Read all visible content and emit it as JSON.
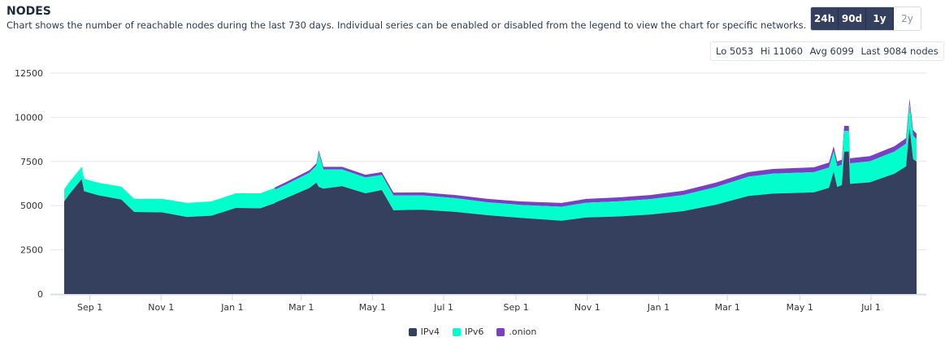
{
  "header": {
    "title": "NODES",
    "description": "Chart shows the number of reachable nodes during the last 730 days. Individual series can be enabled or disabled from the legend to view the chart for specific networks."
  },
  "range_buttons": [
    {
      "label": "24h",
      "active": true
    },
    {
      "label": "90d",
      "active": true
    },
    {
      "label": "1y",
      "active": true
    },
    {
      "label": "2y",
      "active": false
    }
  ],
  "stats": {
    "lo": "Lo 5053",
    "hi": "Hi 11060",
    "avg": "Avg 6099",
    "last": "Last 9084 nodes"
  },
  "chart_data": {
    "type": "area",
    "stacked": true,
    "title": "NODES",
    "xlabel": "",
    "ylabel": "",
    "ylim": [
      0,
      12500
    ],
    "yticks": [
      0,
      2500,
      5000,
      7500,
      10000,
      12500
    ],
    "xlim_days": [
      0,
      730
    ],
    "xticks": [
      {
        "day": 22,
        "label": "Sep 1"
      },
      {
        "day": 83,
        "label": "Nov 1"
      },
      {
        "day": 144,
        "label": "Jan 1"
      },
      {
        "day": 203,
        "label": "Mar 1"
      },
      {
        "day": 264,
        "label": "May 1"
      },
      {
        "day": 325,
        "label": "Jul 1"
      },
      {
        "day": 387,
        "label": "Sep 1"
      },
      {
        "day": 448,
        "label": "Nov 1"
      },
      {
        "day": 509,
        "label": "Jan 1"
      },
      {
        "day": 568,
        "label": "Mar 1"
      },
      {
        "day": 630,
        "label": "May 1"
      },
      {
        "day": 691,
        "label": "Jul 1"
      }
    ],
    "grid": true,
    "legend": "bottom",
    "x": [
      0,
      4,
      15,
      17,
      29,
      49,
      60,
      84,
      105,
      126,
      147,
      168,
      180,
      181,
      189,
      210,
      216,
      218,
      222,
      238,
      258,
      272,
      282,
      307,
      335,
      363,
      391,
      426,
      447,
      475,
      502,
      530,
      558,
      586,
      607,
      642,
      655,
      659,
      662,
      666,
      668,
      672,
      673,
      690,
      711,
      721,
      724,
      727,
      730
    ],
    "series": [
      {
        "name": "IPv4",
        "color": "#34405e",
        "values": [
          5240,
          5610,
          6500,
          5820,
          5590,
          5340,
          4640,
          4620,
          4360,
          4430,
          4870,
          4850,
          5130,
          5180,
          5400,
          6000,
          6300,
          6060,
          5960,
          6100,
          5700,
          5880,
          4740,
          4770,
          4650,
          4460,
          4310,
          4150,
          4330,
          4390,
          4500,
          4690,
          5050,
          5550,
          5680,
          5750,
          6010,
          6930,
          6060,
          6160,
          8060,
          8060,
          6230,
          6320,
          6810,
          7220,
          9440,
          7640,
          7484
        ]
      },
      {
        "name": "IPv6",
        "color": "#00ffcc",
        "values": [
          690,
          690,
          700,
          700,
          710,
          730,
          740,
          760,
          790,
          810,
          830,
          850,
          870,
          740,
          765,
          860,
          960,
          1930,
          1095,
          950,
          895,
          860,
          840,
          810,
          770,
          730,
          730,
          790,
          835,
          855,
          870,
          910,
          1000,
          1090,
          1135,
          1145,
          1150,
          1150,
          1160,
          1155,
          1165,
          1165,
          1165,
          1190,
          1250,
          1290,
          1305,
          1322,
          1280
        ]
      },
      {
        "name": ".onion",
        "color": "#7b3fc4",
        "values": [
          0,
          0,
          0,
          0,
          0,
          0,
          0,
          0,
          0,
          0,
          0,
          0,
          0,
          130,
          135,
          140,
          140,
          140,
          145,
          150,
          155,
          160,
          160,
          170,
          180,
          190,
          200,
          210,
          215,
          225,
          230,
          240,
          250,
          260,
          265,
          275,
          280,
          280,
          280,
          285,
          285,
          285,
          285,
          290,
          300,
          310,
          315,
          318,
          320
        ]
      }
    ]
  }
}
